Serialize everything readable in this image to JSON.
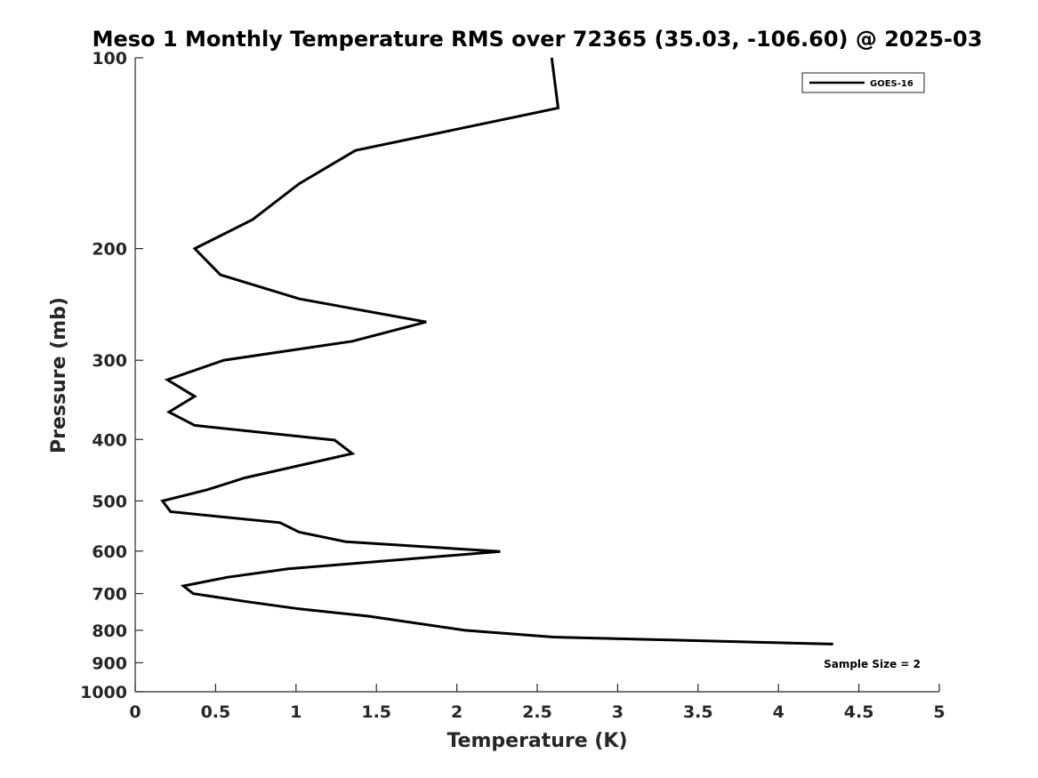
{
  "chart_data": {
    "type": "line",
    "title": "Meso 1 Monthly Temperature RMS over 72365 (35.03, -106.60) @ 2025-03",
    "xlabel": "Temperature (K)",
    "ylabel": "Pressure (mb)",
    "xlim": [
      0,
      5
    ],
    "ylim": [
      100,
      1000
    ],
    "y_scale": "log",
    "y_reversed": true,
    "x_ticks": [
      "0",
      "0.5",
      "1",
      "1.5",
      "2",
      "2.5",
      "3",
      "3.5",
      "4",
      "4.5",
      "5"
    ],
    "x_tick_values": [
      0,
      0.5,
      1,
      1.5,
      2,
      2.5,
      3,
      3.5,
      4,
      4.5,
      5
    ],
    "y_ticks": [
      "100",
      "200",
      "300",
      "400",
      "500",
      "600",
      "700",
      "800",
      "900",
      "1000"
    ],
    "y_tick_values": [
      100,
      200,
      300,
      400,
      500,
      600,
      700,
      800,
      900,
      1000
    ],
    "grid": false,
    "legend_position": "top-right",
    "series": [
      {
        "name": "GOES-16",
        "color": "#000000",
        "points": [
          {
            "x": 2.59,
            "y": 100
          },
          {
            "x": 2.63,
            "y": 120
          },
          {
            "x": 1.37,
            "y": 140
          },
          {
            "x": 1.02,
            "y": 158
          },
          {
            "x": 0.73,
            "y": 180
          },
          {
            "x": 0.37,
            "y": 200
          },
          {
            "x": 0.53,
            "y": 220
          },
          {
            "x": 1.02,
            "y": 240
          },
          {
            "x": 1.81,
            "y": 261
          },
          {
            "x": 1.35,
            "y": 280
          },
          {
            "x": 0.55,
            "y": 300
          },
          {
            "x": 0.2,
            "y": 322
          },
          {
            "x": 0.37,
            "y": 342
          },
          {
            "x": 0.21,
            "y": 362
          },
          {
            "x": 0.37,
            "y": 380
          },
          {
            "x": 1.24,
            "y": 401
          },
          {
            "x": 1.35,
            "y": 421
          },
          {
            "x": 0.68,
            "y": 460
          },
          {
            "x": 0.45,
            "y": 480
          },
          {
            "x": 0.17,
            "y": 500
          },
          {
            "x": 0.22,
            "y": 520
          },
          {
            "x": 0.9,
            "y": 541
          },
          {
            "x": 1.02,
            "y": 560
          },
          {
            "x": 1.31,
            "y": 580
          },
          {
            "x": 2.27,
            "y": 601
          },
          {
            "x": 0.95,
            "y": 640
          },
          {
            "x": 0.57,
            "y": 660
          },
          {
            "x": 0.3,
            "y": 681
          },
          {
            "x": 0.36,
            "y": 700
          },
          {
            "x": 0.68,
            "y": 720
          },
          {
            "x": 1.02,
            "y": 740
          },
          {
            "x": 1.45,
            "y": 760
          },
          {
            "x": 2.05,
            "y": 800
          },
          {
            "x": 2.6,
            "y": 820
          },
          {
            "x": 4.34,
            "y": 841
          }
        ]
      }
    ],
    "annotations": [
      "Sample Size = 2"
    ]
  }
}
